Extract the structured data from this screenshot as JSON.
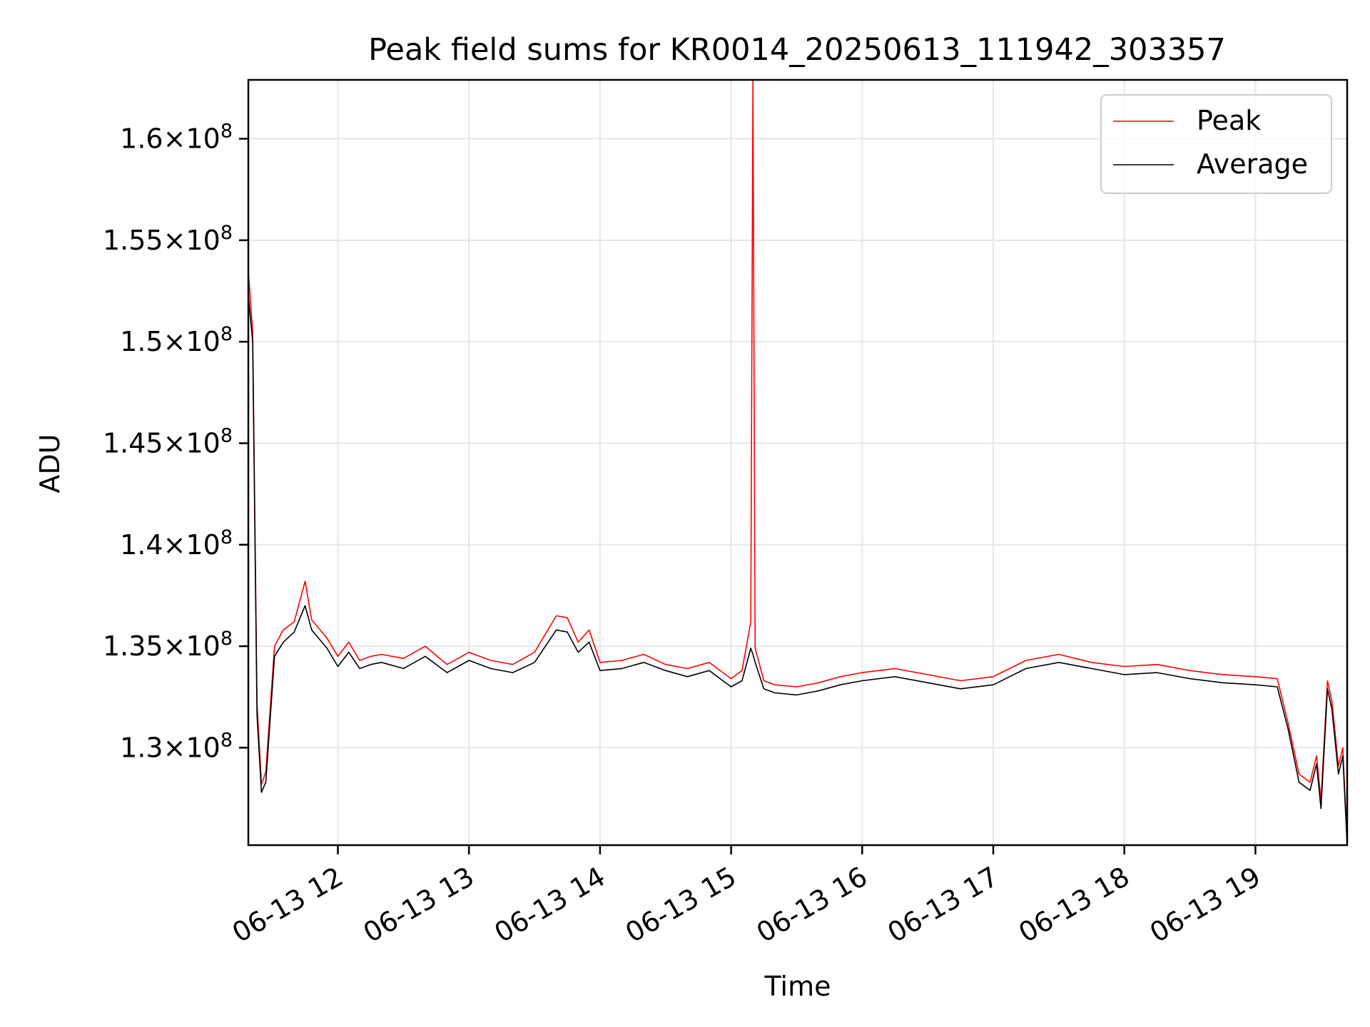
{
  "chart_data": {
    "type": "line",
    "title": "Peak field sums for KR0014_20250613_111942_303357",
    "xlabel": "Time",
    "ylabel": "ADU",
    "xlim": [
      "2025-06-13 11:19",
      "2025-06-13 19:42"
    ],
    "ylim": [
      125200000,
      162900000
    ],
    "x_ticks": [
      {
        "value": "2025-06-13 12:00",
        "label": "06-13 12"
      },
      {
        "value": "2025-06-13 13:00",
        "label": "06-13 13"
      },
      {
        "value": "2025-06-13 14:00",
        "label": "06-13 14"
      },
      {
        "value": "2025-06-13 15:00",
        "label": "06-13 15"
      },
      {
        "value": "2025-06-13 16:00",
        "label": "06-13 16"
      },
      {
        "value": "2025-06-13 17:00",
        "label": "06-13 17"
      },
      {
        "value": "2025-06-13 18:00",
        "label": "06-13 18"
      },
      {
        "value": "2025-06-13 19:00",
        "label": "06-13 19"
      }
    ],
    "y_ticks": [
      {
        "value": 130000000,
        "mantissa": "1.3",
        "exponent": "8"
      },
      {
        "value": 135000000,
        "mantissa": "1.35",
        "exponent": "8"
      },
      {
        "value": 140000000,
        "mantissa": "1.4",
        "exponent": "8"
      },
      {
        "value": 145000000,
        "mantissa": "1.45",
        "exponent": "8"
      },
      {
        "value": 150000000,
        "mantissa": "1.5",
        "exponent": "8"
      },
      {
        "value": 155000000,
        "mantissa": "1.55",
        "exponent": "8"
      },
      {
        "value": 160000000,
        "mantissa": "1.6",
        "exponent": "8"
      }
    ],
    "grid": true,
    "legend_position": "top-right",
    "series": [
      {
        "name": "Peak",
        "color": "#ff0000",
        "x": [
          "2025-06-13 11:19",
          "2025-06-13 11:21",
          "2025-06-13 11:23",
          "2025-06-13 11:25",
          "2025-06-13 11:27",
          "2025-06-13 11:31",
          "2025-06-13 11:35",
          "2025-06-13 11:40",
          "2025-06-13 11:45",
          "2025-06-13 11:48",
          "2025-06-13 11:55",
          "2025-06-13 12:00",
          "2025-06-13 12:05",
          "2025-06-13 12:10",
          "2025-06-13 12:15",
          "2025-06-13 12:20",
          "2025-06-13 12:30",
          "2025-06-13 12:40",
          "2025-06-13 12:50",
          "2025-06-13 13:00",
          "2025-06-13 13:10",
          "2025-06-13 13:20",
          "2025-06-13 13:30",
          "2025-06-13 13:40",
          "2025-06-13 13:45",
          "2025-06-13 13:50",
          "2025-06-13 13:55",
          "2025-06-13 14:00",
          "2025-06-13 14:10",
          "2025-06-13 14:20",
          "2025-06-13 14:30",
          "2025-06-13 14:40",
          "2025-06-13 14:50",
          "2025-06-13 15:00",
          "2025-06-13 15:05",
          "2025-06-13 15:09",
          "2025-06-13 15:10",
          "2025-06-13 15:11",
          "2025-06-13 15:15",
          "2025-06-13 15:20",
          "2025-06-13 15:30",
          "2025-06-13 15:40",
          "2025-06-13 15:50",
          "2025-06-13 16:00",
          "2025-06-13 16:15",
          "2025-06-13 16:30",
          "2025-06-13 16:45",
          "2025-06-13 17:00",
          "2025-06-13 17:15",
          "2025-06-13 17:30",
          "2025-06-13 17:45",
          "2025-06-13 18:00",
          "2025-06-13 18:15",
          "2025-06-13 18:30",
          "2025-06-13 18:45",
          "2025-06-13 19:00",
          "2025-06-13 19:10",
          "2025-06-13 19:15",
          "2025-06-13 19:20",
          "2025-06-13 19:25",
          "2025-06-13 19:28",
          "2025-06-13 19:30",
          "2025-06-13 19:33",
          "2025-06-13 19:35",
          "2025-06-13 19:38",
          "2025-06-13 19:40",
          "2025-06-13 19:42"
        ],
        "y": [
          153500000,
          150500000,
          132200000,
          128200000,
          128800000,
          135000000,
          135800000,
          136200000,
          138200000,
          136300000,
          135400000,
          134500000,
          135200000,
          134300000,
          134500000,
          134600000,
          134400000,
          135000000,
          134100000,
          134700000,
          134300000,
          134100000,
          134700000,
          136500000,
          136400000,
          135200000,
          135800000,
          134200000,
          134300000,
          134600000,
          134100000,
          133900000,
          134200000,
          133400000,
          133800000,
          136200000,
          162900000,
          134900000,
          133300000,
          133100000,
          133000000,
          133200000,
          133500000,
          133700000,
          133900000,
          133600000,
          133300000,
          133500000,
          134300000,
          134600000,
          134200000,
          134000000,
          134100000,
          133800000,
          133600000,
          133500000,
          133400000,
          131200000,
          128700000,
          128300000,
          129600000,
          127400000,
          133300000,
          132300000,
          129100000,
          130000000,
          125200000
        ]
      },
      {
        "name": "Average",
        "color": "#000000",
        "x": [
          "2025-06-13 11:19",
          "2025-06-13 11:21",
          "2025-06-13 11:23",
          "2025-06-13 11:25",
          "2025-06-13 11:27",
          "2025-06-13 11:31",
          "2025-06-13 11:35",
          "2025-06-13 11:40",
          "2025-06-13 11:45",
          "2025-06-13 11:48",
          "2025-06-13 11:55",
          "2025-06-13 12:00",
          "2025-06-13 12:05",
          "2025-06-13 12:10",
          "2025-06-13 12:15",
          "2025-06-13 12:20",
          "2025-06-13 12:30",
          "2025-06-13 12:40",
          "2025-06-13 12:50",
          "2025-06-13 13:00",
          "2025-06-13 13:10",
          "2025-06-13 13:20",
          "2025-06-13 13:30",
          "2025-06-13 13:40",
          "2025-06-13 13:45",
          "2025-06-13 13:50",
          "2025-06-13 13:55",
          "2025-06-13 14:00",
          "2025-06-13 14:10",
          "2025-06-13 14:20",
          "2025-06-13 14:30",
          "2025-06-13 14:40",
          "2025-06-13 14:50",
          "2025-06-13 15:00",
          "2025-06-13 15:05",
          "2025-06-13 15:09",
          "2025-06-13 15:10",
          "2025-06-13 15:11",
          "2025-06-13 15:15",
          "2025-06-13 15:20",
          "2025-06-13 15:30",
          "2025-06-13 15:40",
          "2025-06-13 15:50",
          "2025-06-13 16:00",
          "2025-06-13 16:15",
          "2025-06-13 16:30",
          "2025-06-13 16:45",
          "2025-06-13 17:00",
          "2025-06-13 17:15",
          "2025-06-13 17:30",
          "2025-06-13 17:45",
          "2025-06-13 18:00",
          "2025-06-13 18:15",
          "2025-06-13 18:30",
          "2025-06-13 18:45",
          "2025-06-13 19:00",
          "2025-06-13 19:10",
          "2025-06-13 19:15",
          "2025-06-13 19:20",
          "2025-06-13 19:25",
          "2025-06-13 19:28",
          "2025-06-13 19:30",
          "2025-06-13 19:33",
          "2025-06-13 19:35",
          "2025-06-13 19:38",
          "2025-06-13 19:40",
          "2025-06-13 19:42"
        ],
        "y": [
          152300000,
          150000000,
          131600000,
          127800000,
          128300000,
          134500000,
          135200000,
          135700000,
          137000000,
          135800000,
          134900000,
          134000000,
          134700000,
          133900000,
          134100000,
          134200000,
          133900000,
          134500000,
          133700000,
          134300000,
          133900000,
          133700000,
          134200000,
          135800000,
          135700000,
          134700000,
          135200000,
          133800000,
          133900000,
          134200000,
          133800000,
          133500000,
          133800000,
          133000000,
          133300000,
          134900000,
          134600000,
          134200000,
          132900000,
          132700000,
          132600000,
          132800000,
          133100000,
          133300000,
          133500000,
          133200000,
          132900000,
          133100000,
          133900000,
          134200000,
          133900000,
          133600000,
          133700000,
          133400000,
          133200000,
          133100000,
          133000000,
          130900000,
          128300000,
          127900000,
          129200000,
          127000000,
          132900000,
          131900000,
          128700000,
          129600000,
          125200000
        ]
      }
    ]
  }
}
